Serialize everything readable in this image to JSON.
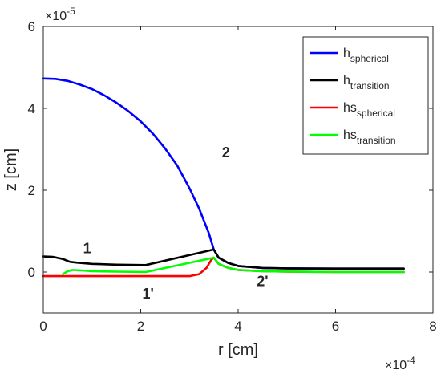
{
  "chart_data": {
    "type": "line",
    "title": "",
    "xlabel": "r [cm]",
    "ylabel": "z [cm]",
    "x_exponent": "×10",
    "x_exponent_power": "-4",
    "y_exponent": "×10",
    "y_exponent_power": "-5",
    "xlim": [
      0,
      8
    ],
    "ylim": [
      -1,
      6
    ],
    "xticks": [
      "0",
      "2",
      "4",
      "6",
      "8"
    ],
    "yticks": [
      "0",
      "2",
      "4",
      "6"
    ],
    "grid": false,
    "legend_position": "top-right",
    "series": [
      {
        "name": "h",
        "name_sub": "spherical",
        "color": "#0000ff",
        "x": [
          0,
          0.25,
          0.5,
          0.75,
          1.0,
          1.25,
          1.5,
          1.75,
          2.0,
          2.25,
          2.5,
          2.75,
          3.0,
          3.2,
          3.4,
          3.5,
          3.6,
          3.8,
          4.0,
          4.5,
          5.0,
          6.0,
          7.0,
          7.4
        ],
        "y": [
          4.73,
          4.72,
          4.67,
          4.58,
          4.47,
          4.32,
          4.14,
          3.93,
          3.68,
          3.38,
          3.02,
          2.6,
          2.05,
          1.55,
          0.95,
          0.55,
          0.35,
          0.22,
          0.15,
          0.1,
          0.09,
          0.085,
          0.085,
          0.085
        ]
      },
      {
        "name": "h",
        "name_sub": "transition",
        "color": "#000000",
        "x": [
          0,
          0.2,
          0.4,
          0.55,
          0.7,
          1.0,
          1.5,
          2.1,
          3.5,
          3.6,
          3.8,
          4.0,
          4.5,
          5.0,
          6.0,
          7.0,
          7.4
        ],
        "y": [
          0.38,
          0.37,
          0.32,
          0.25,
          0.23,
          0.2,
          0.18,
          0.17,
          0.55,
          0.35,
          0.22,
          0.15,
          0.1,
          0.09,
          0.085,
          0.085,
          0.085
        ]
      },
      {
        "name": "hs",
        "name_sub": "spherical",
        "color": "#ff0000",
        "x": [
          0,
          0.5,
          1.0,
          2.0,
          3.0,
          3.2,
          3.35,
          3.45,
          3.5,
          3.6,
          3.8,
          4.0,
          4.5,
          5.0,
          6.0,
          7.0,
          7.4
        ],
        "y": [
          -0.1,
          -0.1,
          -0.1,
          -0.1,
          -0.1,
          -0.05,
          0.1,
          0.3,
          0.35,
          0.2,
          0.1,
          0.05,
          0.02,
          0.01,
          0.0,
          0.0,
          0.0
        ]
      },
      {
        "name": "hs",
        "name_sub": "transition",
        "color": "#00ff00",
        "x": [
          0.4,
          0.5,
          0.6,
          0.8,
          1.0,
          1.5,
          2.1,
          3.5,
          3.6,
          3.8,
          4.0,
          4.5,
          5.0,
          6.0,
          7.0,
          7.4
        ],
        "y": [
          -0.05,
          0.02,
          0.05,
          0.04,
          0.02,
          0.01,
          0.0,
          0.35,
          0.2,
          0.1,
          0.05,
          0.02,
          0.01,
          0.0,
          0.0,
          0.0
        ]
      }
    ],
    "annotations": [
      {
        "text": "2",
        "x": 3.75,
        "y": 2.9
      },
      {
        "text": "1",
        "x": 0.9,
        "y": 0.55
      },
      {
        "text": "1'",
        "x": 2.15,
        "y": -0.55
      },
      {
        "text": "2'",
        "x": 4.5,
        "y": -0.25
      }
    ]
  }
}
